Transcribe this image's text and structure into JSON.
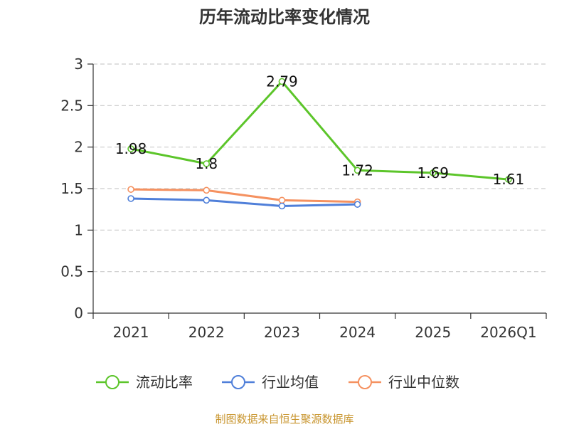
{
  "chart_data": {
    "type": "line",
    "title": "历年流动比率变化情况",
    "categories": [
      "2021",
      "2022",
      "2023",
      "2024",
      "2025",
      "2026Q1"
    ],
    "ylim": [
      0,
      3
    ],
    "yticks": [
      "0",
      "0.5",
      "1",
      "1.5",
      "2",
      "2.5",
      "3"
    ],
    "ytick_values": [
      0,
      0.5,
      1,
      1.5,
      2,
      2.5,
      3
    ],
    "grid": true,
    "legend_position": "bottom",
    "series": [
      {
        "name": "流动比率",
        "color": "#5cc52a",
        "values": [
          1.98,
          1.8,
          2.79,
          1.72,
          1.69,
          1.61
        ],
        "labels": [
          "1.98",
          "1.8",
          "2.79",
          "1.72",
          "1.69",
          "1.61"
        ]
      },
      {
        "name": "行业均值",
        "color": "#4f7fd9",
        "values": [
          1.38,
          1.36,
          1.29,
          1.31,
          null,
          null
        ]
      },
      {
        "name": "行业中位数",
        "color": "#f59160",
        "values": [
          1.49,
          1.48,
          1.36,
          1.34,
          null,
          null
        ]
      }
    ],
    "source": "制图数据来自恒生聚源数据库",
    "source_color": "#c8952e"
  }
}
